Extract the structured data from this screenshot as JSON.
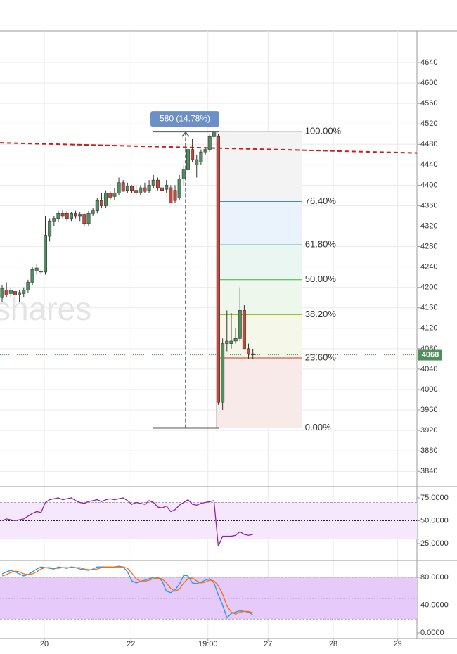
{
  "chart_data": [
    {
      "type": "candlestick",
      "watermark": "shares",
      "xlim": [
        -0.49,
        95.94
      ],
      "xticks": [
        {
          "value": 9.75,
          "label": "20"
        },
        {
          "value": 29.8,
          "label": "22"
        },
        {
          "value": 47.6,
          "label": "19:00"
        },
        {
          "value": 61.5,
          "label": "27"
        },
        {
          "value": 76.6,
          "label": "28"
        },
        {
          "value": 91.5,
          "label": "29"
        }
      ],
      "ylim": [
        3810,
        4702
      ],
      "yticks": [
        3840,
        3880,
        3920,
        3960,
        4000,
        4040,
        4080,
        4120,
        4160,
        4200,
        4240,
        4280,
        4320,
        4360,
        4400,
        4440,
        4480,
        4520,
        4560,
        4600,
        4640
      ],
      "grid": true,
      "up_color": "#4f8f5e",
      "down_color": "#c8473a",
      "candles": {
        "open": [
          4180,
          4195,
          4188,
          4192,
          4185,
          4188,
          4195,
          4210,
          4232,
          4232,
          4230,
          4300,
          4330,
          4335,
          4345,
          4345,
          4335,
          4345,
          4340,
          4342,
          4325,
          4345,
          4350,
          4370,
          4360,
          4385,
          4378,
          4385,
          4405,
          4390,
          4398,
          4390,
          4385,
          4395,
          4390,
          4400,
          4410,
          4395,
          4392,
          4395,
          4390,
          4375,
          4412,
          4430,
          4470,
          4440,
          4445,
          4465,
          4470,
          4495,
          4495,
          3975,
          4090,
          4090,
          4095,
          4100,
          4155,
          4080,
          4070
        ],
        "high": [
          4205,
          4210,
          4200,
          4205,
          4195,
          4200,
          4215,
          4240,
          4245,
          4235,
          4340,
          4335,
          4340,
          4350,
          4352,
          4350,
          4348,
          4350,
          4348,
          4345,
          4350,
          4355,
          4375,
          4385,
          4390,
          4388,
          4395,
          4415,
          4410,
          4405,
          4400,
          4400,
          4400,
          4405,
          4410,
          4420,
          4415,
          4400,
          4410,
          4400,
          4400,
          4420,
          4440,
          4480,
          4490,
          4460,
          4470,
          4475,
          4500,
          4507,
          4500,
          4100,
          4155,
          4150,
          4120,
          4200,
          4165,
          4090,
          4080
        ],
        "low": [
          4172,
          4180,
          4180,
          4175,
          4172,
          4180,
          4190,
          4205,
          4225,
          4225,
          4225,
          4290,
          4320,
          4328,
          4335,
          4330,
          4330,
          4335,
          4330,
          4320,
          4320,
          4340,
          4345,
          4355,
          4355,
          4370,
          4370,
          4380,
          4390,
          4385,
          4385,
          4380,
          4380,
          4385,
          4385,
          4395,
          4390,
          4385,
          4385,
          4365,
          4365,
          4370,
          4400,
          4425,
          4445,
          4415,
          4440,
          4460,
          4465,
          4490,
          3970,
          3960,
          4075,
          4080,
          4090,
          4095,
          4080,
          4060,
          4060
        ],
        "close": [
          4198,
          4185,
          4195,
          4185,
          4190,
          4195,
          4210,
          4235,
          4238,
          4230,
          4302,
          4330,
          4335,
          4345,
          4340,
          4335,
          4345,
          4340,
          4342,
          4325,
          4345,
          4350,
          4370,
          4360,
          4385,
          4375,
          4385,
          4405,
          4388,
          4398,
          4390,
          4385,
          4395,
          4388,
          4400,
          4410,
          4395,
          4390,
          4400,
          4365,
          4370,
          4412,
          4430,
          4470,
          4450,
          4450,
          4465,
          4470,
          4495,
          4503,
          3975,
          4090,
          4095,
          4095,
          4100,
          4155,
          4080,
          4070,
          4068
        ]
      },
      "trendline": {
        "start": 4483,
        "end": 4463,
        "color": "#c81e1e"
      },
      "fibonacci": {
        "low": 3925,
        "high": 4505,
        "levels": [
          {
            "ratio": 100,
            "label": "100.00%",
            "color": "#8a8a8a",
            "fill": "#f3f3f3"
          },
          {
            "ratio": 76.4,
            "label": "76.40%",
            "color": "#3d8cbf",
            "fill": "#eaf2fb"
          },
          {
            "ratio": 61.8,
            "label": "61.80%",
            "color": "#2aa68a",
            "fill": "#eaf6f1"
          },
          {
            "ratio": 50,
            "label": "50.00%",
            "color": "#3fae49",
            "fill": "#edf7ec"
          },
          {
            "ratio": 38.2,
            "label": "38.20%",
            "color": "#9dbb2b",
            "fill": "#f5f8e9"
          },
          {
            "ratio": 23.6,
            "label": "23.60%",
            "color": "#c0392b",
            "fill": "#f9eaea"
          },
          {
            "ratio": 0,
            "label": "0.00%",
            "color": "#8a8a8a"
          }
        ]
      },
      "measure": {
        "label": "580 (14.78%)",
        "from": 3925,
        "to": 4505,
        "color": "#6b8fc6"
      },
      "last_price": {
        "value": 4068,
        "color": "#4f8f5e"
      }
    },
    {
      "type": "line",
      "ylim": [
        6.5,
        87.3
      ],
      "yticks": [
        {
          "value": 75,
          "label": "75.0000"
        },
        {
          "value": 50,
          "label": "50.0000"
        },
        {
          "value": 25,
          "label": "25.0000"
        }
      ],
      "band": [
        30,
        70
      ],
      "band_color": "#f5e8fc",
      "midline": 50,
      "series": [
        {
          "color": "#8e24aa",
          "values": [
            50,
            52,
            51,
            50,
            51,
            52,
            55,
            58,
            60,
            59,
            70,
            73,
            74,
            75,
            73,
            74,
            75,
            72,
            70,
            69,
            71,
            72,
            73,
            71,
            73,
            74,
            73,
            74,
            75,
            72,
            68,
            70,
            69,
            68,
            72,
            70,
            65,
            64,
            66,
            60,
            62,
            67,
            70,
            73,
            68,
            67,
            69,
            70,
            71,
            72,
            22,
            33,
            33,
            33,
            34,
            38,
            35,
            34,
            35
          ]
        }
      ]
    },
    {
      "type": "line",
      "ylim": [
        -8.1,
        104.3
      ],
      "yticks": [
        {
          "value": 80,
          "label": "80.0000"
        },
        {
          "value": 40,
          "label": "40.0000"
        },
        {
          "value": 0,
          "label": "0.0000"
        }
      ],
      "band": [
        20,
        80
      ],
      "band_color": "#e6cbfa",
      "midline": 50,
      "series": [
        {
          "color": "#2196f3",
          "values": [
            85,
            88,
            90,
            88,
            85,
            82,
            84,
            88,
            92,
            95,
            94,
            93,
            92,
            95,
            94,
            93,
            95,
            94,
            92,
            91,
            90,
            92,
            95,
            95,
            95,
            94,
            95,
            96,
            95,
            88,
            75,
            72,
            74,
            76,
            78,
            80,
            80,
            75,
            60,
            58,
            62,
            70,
            83,
            82,
            72,
            71,
            73,
            76,
            78,
            72,
            55,
            40,
            22,
            28,
            30,
            32,
            31,
            30,
            26
          ]
        },
        {
          "color": "#ff6d00",
          "values": [
            82,
            84,
            87,
            89,
            88,
            85,
            84,
            85,
            88,
            92,
            94,
            94,
            93,
            93,
            94,
            94,
            94,
            94,
            94,
            92,
            91,
            91,
            92,
            94,
            95,
            95,
            95,
            95,
            95,
            93,
            86,
            78,
            74,
            74,
            76,
            78,
            79,
            78,
            72,
            64,
            60,
            63,
            72,
            78,
            79,
            75,
            72,
            73,
            76,
            75,
            68,
            56,
            39,
            30,
            27,
            30,
            31,
            31,
            29
          ]
        }
      ]
    }
  ]
}
